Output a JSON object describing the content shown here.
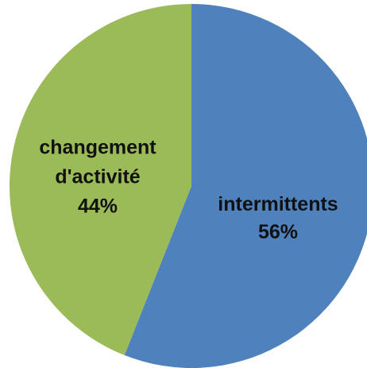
{
  "chart_data": {
    "type": "pie",
    "title": "",
    "start_angle_deg": 0,
    "direction": "clockwise",
    "slices": [
      {
        "label_lines": [
          "intermittents"
        ],
        "percent_label": "56%",
        "value": 56,
        "color": "#4F81BD"
      },
      {
        "label_lines": [
          "changement",
          "d'activité"
        ],
        "percent_label": "44%",
        "value": 44,
        "color": "#9BBB59"
      }
    ]
  }
}
